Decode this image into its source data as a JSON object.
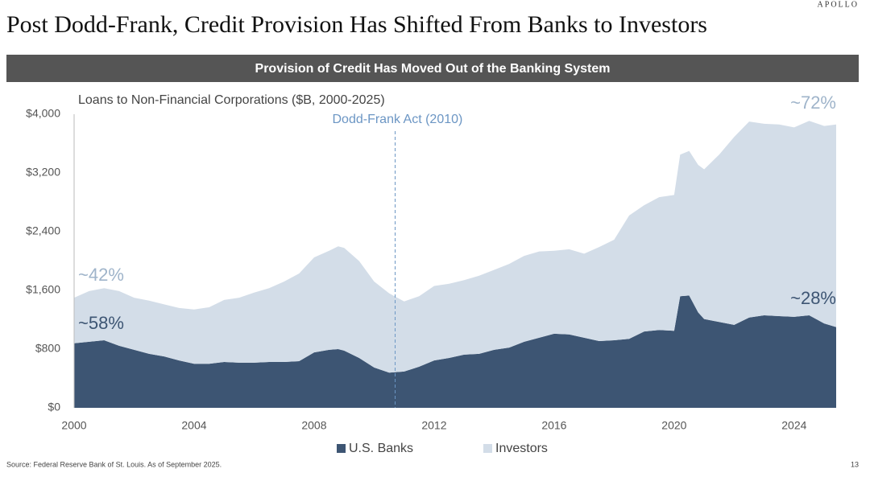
{
  "brand": "APOLLO",
  "header": {
    "title": "Post Dodd-Frank, Credit Provision Has Shifted From Banks to Investors"
  },
  "banner": "Provision of Credit Has Moved Out of the Banking System",
  "source": "Source: Federal Reserve Bank of St. Louis. As of September 2025.",
  "page_number": "13",
  "chart_data": {
    "type": "stacked_area",
    "subtitle": "Loans to Non-Financial Corporations ($B, 2000-2025)",
    "x": [
      2000,
      2000.5,
      2001,
      2001.5,
      2002,
      2002.5,
      2003,
      2003.5,
      2004,
      2004.5,
      2005,
      2005.5,
      2006,
      2006.5,
      2007,
      2007.5,
      2008,
      2008.5,
      2008.8,
      2009,
      2009.5,
      2010,
      2010.5,
      2011,
      2011.5,
      2012,
      2012.5,
      2013,
      2013.5,
      2014,
      2014.5,
      2015,
      2015.5,
      2016,
      2016.5,
      2017,
      2017.5,
      2018,
      2018.5,
      2019,
      2019.5,
      2020,
      2020.2,
      2020.5,
      2020.8,
      2021,
      2021.5,
      2022,
      2022.5,
      2023,
      2023.5,
      2024,
      2024.5,
      2025,
      2025.4
    ],
    "series": [
      {
        "name": "U.S. Banks",
        "color": "#3d5573",
        "values": [
          880,
          900,
          920,
          845,
          790,
          735,
          700,
          645,
          600,
          600,
          625,
          615,
          615,
          625,
          625,
          635,
          755,
          790,
          800,
          780,
          680,
          550,
          480,
          495,
          560,
          645,
          680,
          725,
          735,
          790,
          820,
          900,
          955,
          1010,
          1000,
          955,
          910,
          920,
          940,
          1040,
          1060,
          1050,
          1520,
          1530,
          1300,
          1210,
          1170,
          1130,
          1230,
          1260,
          1250,
          1240,
          1260,
          1150,
          1100
        ]
      },
      {
        "name": "Investors",
        "color": "#d3dde8",
        "values": [
          620,
          690,
          710,
          745,
          710,
          725,
          710,
          715,
          740,
          770,
          845,
          885,
          955,
          1005,
          1095,
          1195,
          1295,
          1350,
          1400,
          1400,
          1320,
          1170,
          1080,
          955,
          960,
          1015,
          1010,
          1015,
          1065,
          1090,
          1140,
          1170,
          1175,
          1130,
          1160,
          1145,
          1280,
          1370,
          1680,
          1720,
          1810,
          1850,
          1930,
          1970,
          2010,
          2040,
          2280,
          2560,
          2670,
          2610,
          2610,
          2580,
          2650,
          2690,
          2760
        ]
      }
    ],
    "xlim": [
      2000,
      2025.4
    ],
    "xticks": [
      2000,
      2004,
      2008,
      2012,
      2016,
      2020,
      2024
    ],
    "ylim": [
      0,
      4000
    ],
    "yticks": [
      {
        "value": 0,
        "label": "$0"
      },
      {
        "value": 800,
        "label": "$800"
      },
      {
        "value": 1600,
        "label": "$1,600"
      },
      {
        "value": 2400,
        "label": "$2,400"
      },
      {
        "value": 3200,
        "label": "$3,200"
      },
      {
        "value": 4000,
        "label": "$4,000"
      }
    ],
    "event": {
      "x": 2010.7,
      "label": "Dodd-Frank Act (2010)"
    },
    "annotations": [
      "~42%",
      "~58%",
      "~72%",
      "~28%"
    ],
    "legend": "bottom"
  }
}
